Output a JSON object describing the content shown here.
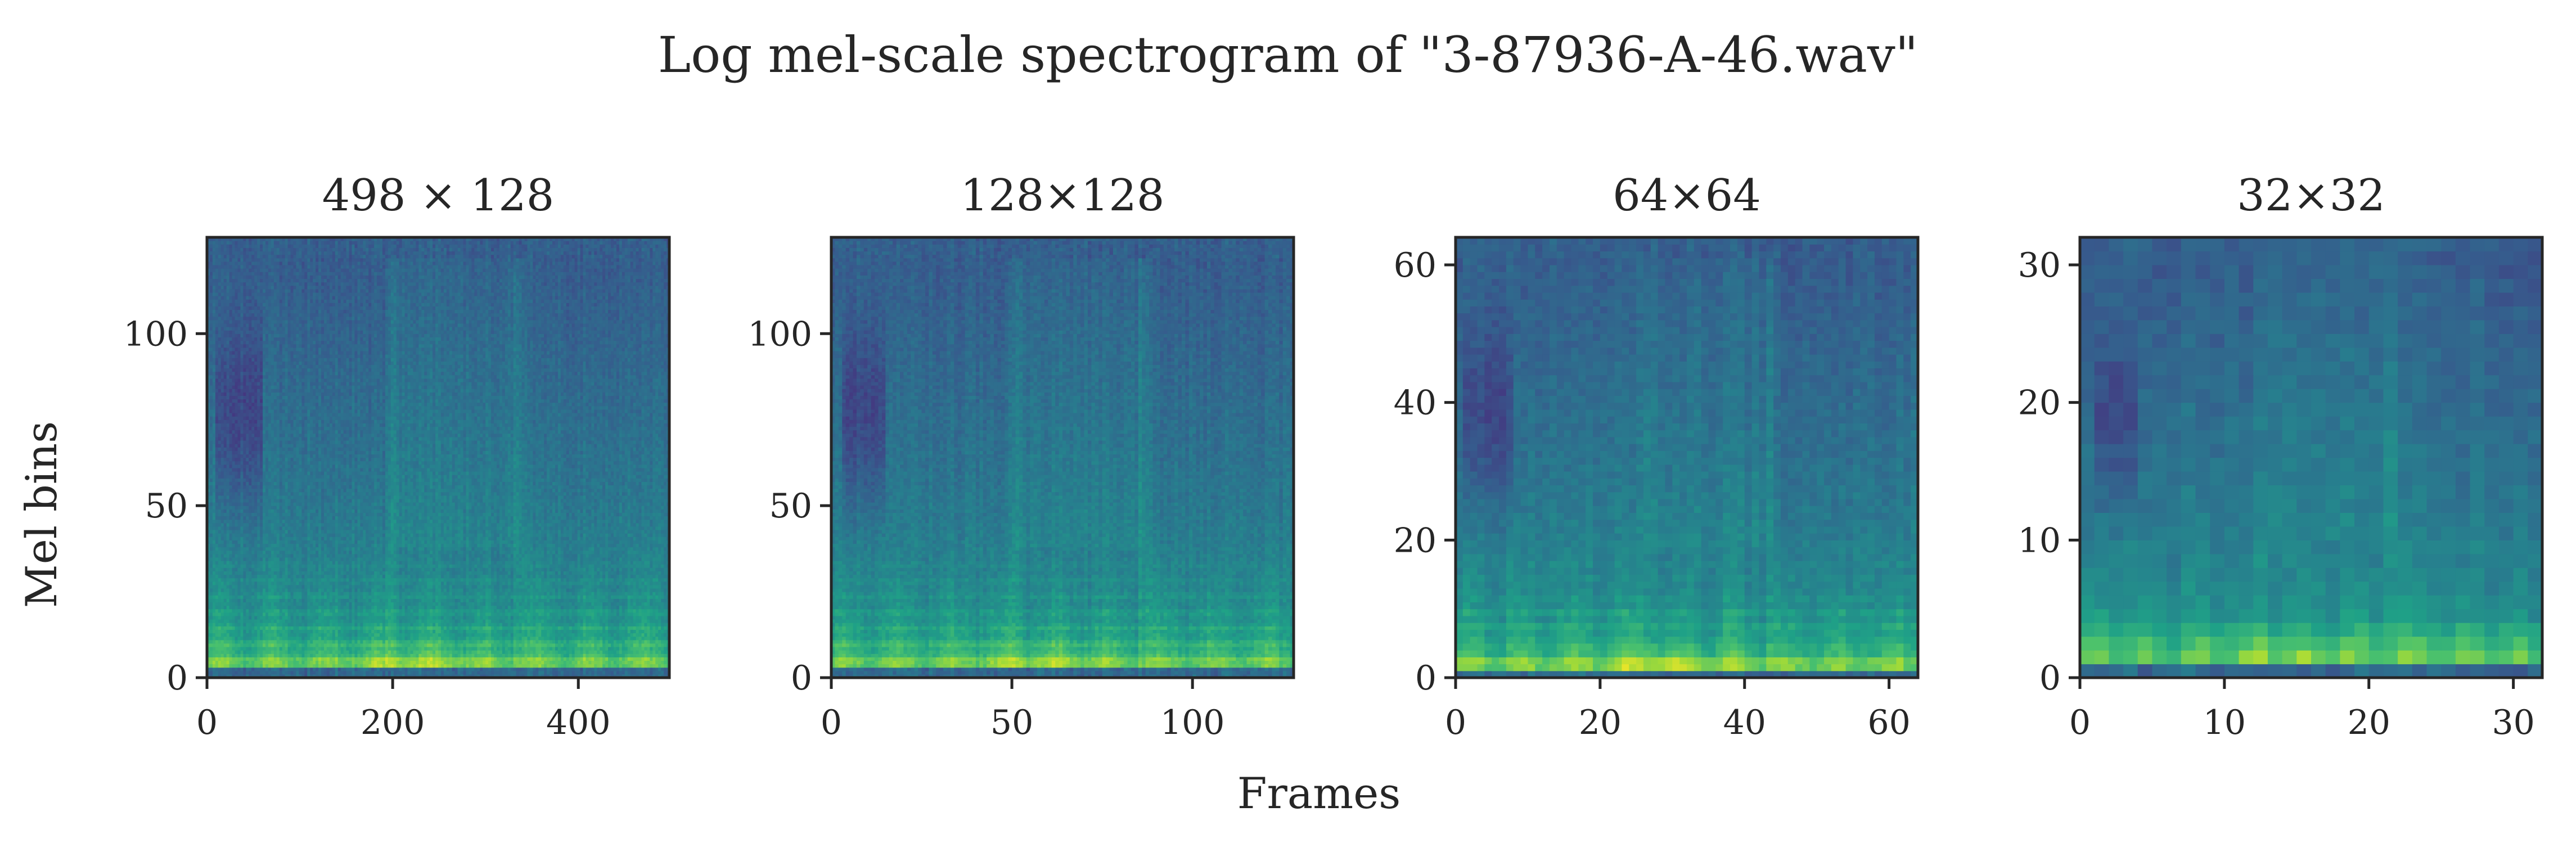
{
  "suptitle": "Log mel-scale spectrogram of \"3-87936-A-46.wav\"",
  "shared_xlabel": "Frames",
  "shared_ylabel": "Mel bins",
  "colormap": [
    "#440154",
    "#46327e",
    "#365c8d",
    "#277f8e",
    "#1fa187",
    "#4ac16d",
    "#a0da39",
    "#fde725"
  ],
  "chart_data": [
    {
      "type": "heatmap",
      "title": "498 × 128",
      "shape": [
        128,
        498
      ],
      "cols": 498,
      "rows": 128,
      "xlim": [
        0,
        498
      ],
      "ylim": [
        0,
        128
      ],
      "xticks": [
        0,
        200,
        400
      ],
      "xtick_labels": [
        "0",
        "200",
        "400"
      ],
      "yticks": [
        0,
        50,
        100
      ],
      "ytick_labels": [
        "0",
        "50",
        "100"
      ],
      "xlabel": "",
      "ylabel": "Mel bins",
      "colormap": "viridis"
    },
    {
      "type": "heatmap",
      "title": "128×128",
      "shape": [
        128,
        128
      ],
      "cols": 128,
      "rows": 128,
      "xlim": [
        0,
        128
      ],
      "ylim": [
        0,
        128
      ],
      "xticks": [
        0,
        50,
        100
      ],
      "xtick_labels": [
        "0",
        "50",
        "100"
      ],
      "yticks": [
        0,
        50,
        100
      ],
      "ytick_labels": [
        "0",
        "50",
        "100"
      ],
      "xlabel": "",
      "ylabel": "",
      "colormap": "viridis"
    },
    {
      "type": "heatmap",
      "title": "64×64",
      "shape": [
        64,
        64
      ],
      "cols": 64,
      "rows": 64,
      "xlim": [
        0,
        64
      ],
      "ylim": [
        0,
        64
      ],
      "xticks": [
        0,
        20,
        40,
        60
      ],
      "xtick_labels": [
        "0",
        "20",
        "40",
        "60"
      ],
      "yticks": [
        0,
        20,
        40,
        60
      ],
      "ytick_labels": [
        "0",
        "20",
        "40",
        "60"
      ],
      "xlabel": "",
      "ylabel": "",
      "colormap": "viridis"
    },
    {
      "type": "heatmap",
      "title": "32×32",
      "shape": [
        32,
        32
      ],
      "cols": 32,
      "rows": 32,
      "xlim": [
        0,
        32
      ],
      "ylim": [
        0,
        32
      ],
      "xticks": [
        0,
        10,
        20,
        30
      ],
      "xtick_labels": [
        "0",
        "10",
        "20",
        "30"
      ],
      "yticks": [
        0,
        10,
        20,
        30
      ],
      "ytick_labels": [
        "0",
        "10",
        "20",
        "30"
      ],
      "xlabel": "",
      "ylabel": "",
      "colormap": "viridis"
    }
  ]
}
